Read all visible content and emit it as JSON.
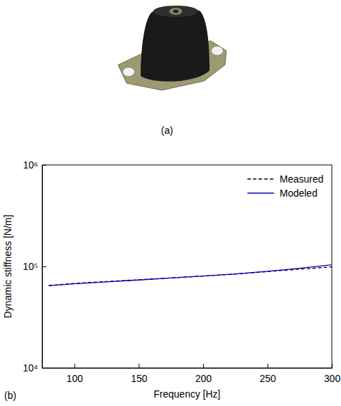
{
  "chart_data": {
    "type": "line",
    "x_label": "Frequency [Hz]",
    "y_label": "Dynamic stiffness [N/m]",
    "x": [
      80,
      100,
      125,
      150,
      175,
      200,
      225,
      250,
      275,
      300
    ],
    "series": [
      {
        "name": "Measured",
        "color": "#000000",
        "line_style": "dashed",
        "values": [
          65000,
          68000,
          71000,
          74000,
          77000,
          80500,
          84000,
          89000,
          94000,
          99000
        ]
      },
      {
        "name": "Modeled",
        "color": "#0000cc",
        "line_style": "solid",
        "values": [
          64500,
          67500,
          70500,
          73500,
          77000,
          80500,
          84500,
          89500,
          96000,
          104000
        ]
      }
    ],
    "xlim": [
      75,
      300
    ],
    "xticks": [
      100,
      150,
      200,
      250,
      300
    ],
    "ylim": [
      10000,
      1000000
    ],
    "yticks": [
      {
        "value": 10000,
        "label": "10⁴"
      },
      {
        "value": 100000,
        "label": "10⁵"
      },
      {
        "value": 1000000,
        "label": "10⁶"
      }
    ],
    "log": "y",
    "grid": false,
    "legend": "upper right"
  },
  "figure": {
    "photo_label": "(a)",
    "chart_label": "(b)"
  }
}
